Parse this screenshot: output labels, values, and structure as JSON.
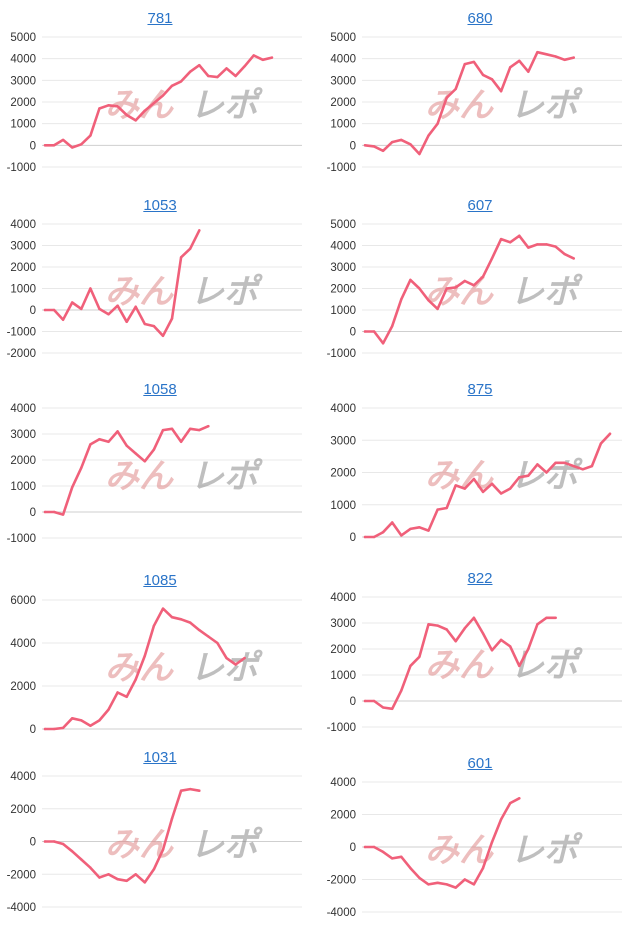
{
  "colors": {
    "line": "#f0607a",
    "grid": "#e8e8e8",
    "zero_line": "#cfcfcf",
    "title": "#2a74c8",
    "tick": "#333333"
  },
  "watermark": {
    "icon": "minrepo-logo-watermark",
    "text_left": "みん",
    "text_right": "レポ"
  },
  "chart_data": [
    {
      "type": "line",
      "title": "781",
      "ylim": [
        -1000,
        5000
      ],
      "yticks": [
        5000,
        4000,
        3000,
        2000,
        1000,
        0,
        -1000
      ],
      "series": [
        {
          "values": [
            0,
            0,
            250,
            -100,
            50,
            450,
            1700,
            1850,
            1800,
            1400,
            1150,
            1600,
            1950,
            2300,
            2750,
            2950,
            3400,
            3700,
            3200,
            3150,
            3550,
            3200,
            3650,
            4150,
            3950,
            4050
          ]
        }
      ]
    },
    {
      "type": "line",
      "title": "680",
      "ylim": [
        -1000,
        5000
      ],
      "yticks": [
        5000,
        4000,
        3000,
        2000,
        1000,
        0,
        -1000
      ],
      "series": [
        {
          "values": [
            0,
            -50,
            -250,
            150,
            250,
            50,
            -400,
            450,
            1000,
            2200,
            2600,
            3750,
            3850,
            3250,
            3050,
            2500,
            3600,
            3900,
            3400,
            4300,
            4200,
            4100,
            3950,
            4050
          ]
        }
      ]
    },
    {
      "type": "line",
      "title": "1053",
      "ylim": [
        -2000,
        4000
      ],
      "yticks": [
        4000,
        3000,
        2000,
        1000,
        0,
        -1000,
        -2000
      ],
      "series": [
        {
          "values": [
            0,
            0,
            -450,
            350,
            50,
            1000,
            50,
            -200,
            200,
            -550,
            150,
            -650,
            -750,
            -1200,
            -400,
            2450,
            2850,
            3700
          ]
        }
      ]
    },
    {
      "type": "line",
      "title": "607",
      "ylim": [
        -1000,
        5000
      ],
      "yticks": [
        5000,
        4000,
        3000,
        2000,
        1000,
        0,
        -1000
      ],
      "series": [
        {
          "values": [
            0,
            0,
            -550,
            250,
            1500,
            2400,
            2000,
            1450,
            1050,
            2000,
            2050,
            2350,
            2150,
            2550,
            3400,
            4300,
            4150,
            4450,
            3900,
            4050,
            4050,
            3950,
            3600,
            3400
          ]
        }
      ]
    },
    {
      "type": "line",
      "title": "1058",
      "ylim": [
        -1000,
        4000
      ],
      "yticks": [
        4000,
        3000,
        2000,
        1000,
        0,
        -1000
      ],
      "series": [
        {
          "values": [
            0,
            0,
            -100,
            950,
            1700,
            2600,
            2800,
            2700,
            3100,
            2550,
            2250,
            1950,
            2400,
            3150,
            3200,
            2700,
            3200,
            3150,
            3300
          ]
        }
      ]
    },
    {
      "type": "line",
      "title": "875",
      "ylim": [
        0,
        4000
      ],
      "yticks": [
        4000,
        3000,
        2000,
        1000,
        0
      ],
      "series": [
        {
          "values": [
            0,
            0,
            150,
            450,
            50,
            250,
            300,
            200,
            850,
            900,
            1600,
            1500,
            1800,
            1400,
            1650,
            1350,
            1500,
            1850,
            1900,
            2250,
            2000,
            2300,
            2300,
            2200,
            2100,
            2200,
            2900,
            3200
          ]
        }
      ]
    },
    {
      "type": "line",
      "title": "1085",
      "ylim": [
        0,
        6000
      ],
      "yticks": [
        6000,
        4000,
        2000,
        0
      ],
      "series": [
        {
          "values": [
            0,
            0,
            50,
            500,
            400,
            150,
            400,
            900,
            1700,
            1500,
            2300,
            3400,
            4800,
            5600,
            5200,
            5100,
            4950,
            4600,
            4300,
            4000,
            3300,
            3000,
            3300
          ]
        }
      ]
    },
    {
      "type": "line",
      "title": "822",
      "ylim": [
        -1000,
        4000
      ],
      "yticks": [
        4000,
        3000,
        2000,
        1000,
        0,
        -1000
      ],
      "series": [
        {
          "values": [
            0,
            0,
            -250,
            -300,
            400,
            1350,
            1700,
            2950,
            2900,
            2750,
            2300,
            2800,
            3200,
            2600,
            1950,
            2350,
            2100,
            1350,
            2000,
            2950,
            3200,
            3200
          ]
        }
      ]
    },
    {
      "type": "line",
      "title": "1031",
      "ylim": [
        -4000,
        4000
      ],
      "yticks": [
        4000,
        2000,
        0,
        -2000,
        -4000
      ],
      "series": [
        {
          "values": [
            0,
            0,
            -150,
            -600,
            -1100,
            -1600,
            -2200,
            -2000,
            -2300,
            -2400,
            -2000,
            -2500,
            -1700,
            -500,
            1400,
            3100,
            3200,
            3100
          ]
        }
      ]
    },
    {
      "type": "line",
      "title": "601",
      "ylim": [
        -4000,
        4000
      ],
      "yticks": [
        4000,
        2000,
        0,
        -2000,
        -4000
      ],
      "series": [
        {
          "values": [
            0,
            0,
            -300,
            -700,
            -600,
            -1300,
            -1900,
            -2300,
            -2200,
            -2300,
            -2500,
            -2000,
            -2300,
            -1300,
            300,
            1700,
            2700,
            3000
          ]
        }
      ]
    }
  ]
}
